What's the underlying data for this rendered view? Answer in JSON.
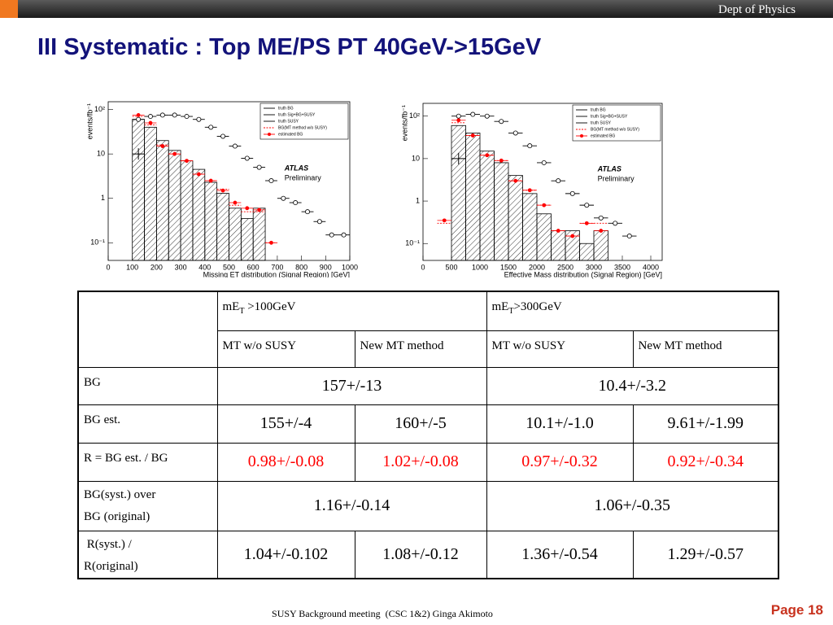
{
  "header": {
    "org": "Dept of Physics"
  },
  "title": "III Systematic : Top ME/PS PT 40GeV->15GeV",
  "chart_data": [
    {
      "type": "histogram",
      "xlabel": "Missing  ET distribution (Signal Region) [GeV]",
      "ylabel": "events/fb⁻¹",
      "annotations": [
        "ATLAS",
        "Preliminary"
      ],
      "log_y": true,
      "bins": [
        0,
        50,
        100,
        150,
        200,
        250,
        300,
        350,
        400,
        450,
        500,
        550,
        600,
        650,
        700,
        750,
        800,
        850,
        900,
        950,
        1000
      ],
      "xlim": [
        0,
        1000
      ],
      "ylim": [
        0.04,
        150
      ],
      "xticks": [
        0,
        100,
        200,
        300,
        400,
        500,
        600,
        700,
        800,
        900,
        1000
      ],
      "yticks": [
        {
          "value": 0.1,
          "label": "10⁻¹"
        },
        1,
        10,
        {
          "value": 100,
          "label": "10²"
        }
      ],
      "series": [
        {
          "name": "truth BG",
          "color": "#000000",
          "style": "hatched",
          "values": [
            null,
            null,
            60,
            40,
            20,
            12,
            7,
            4.5,
            2.3,
            1.3,
            0.6,
            0.35,
            0.6,
            null,
            null,
            null,
            null,
            null,
            null,
            null
          ]
        },
        {
          "name": "truth Sig+BG+SUSY",
          "color": "#000000",
          "style": "open-circle",
          "values": [
            null,
            null,
            60,
            70,
            75,
            75,
            70,
            60,
            40,
            25,
            15,
            8,
            5,
            2.5,
            1,
            0.8,
            0.5,
            0.3,
            0.15,
            0.15
          ]
        },
        {
          "name": "truth SUSY",
          "color": "#000000",
          "style": "cross",
          "values": [
            null,
            null,
            10,
            null,
            null,
            null,
            null,
            null,
            null,
            null,
            null,
            null,
            null,
            null,
            null,
            null,
            null,
            null,
            null,
            null
          ]
        },
        {
          "name": "BG(MT method w/o SUSY)",
          "color": "#ff0000",
          "style": "dotted",
          "values": [
            null,
            null,
            70,
            45,
            16,
            10,
            7,
            3.5,
            2.5,
            1.6,
            0.7,
            0.5,
            0.5,
            0.1,
            null,
            null,
            null,
            null,
            null,
            null
          ]
        },
        {
          "name": "estimated BG",
          "color": "#ff0000",
          "style": "point",
          "values": [
            null,
            null,
            75,
            50,
            15,
            10,
            7,
            3.5,
            2.5,
            1.5,
            0.8,
            0.6,
            0.55,
            0.1,
            null,
            null,
            null,
            null,
            null,
            null
          ]
        }
      ]
    },
    {
      "type": "histogram",
      "xlabel": "Effective  Mass   distribution (Signal Region) [GeV]",
      "ylabel": "events/fb⁻¹",
      "annotations": [
        "ATLAS",
        "Preliminary"
      ],
      "log_y": true,
      "bins": [
        0,
        250,
        500,
        750,
        1000,
        1250,
        1500,
        1750,
        2000,
        2250,
        2500,
        2750,
        3000,
        3250,
        3500,
        3750,
        4000
      ],
      "xlim": [
        0,
        4200
      ],
      "ylim": [
        0.04,
        200
      ],
      "xticks": [
        0,
        500,
        1000,
        1500,
        2000,
        2500,
        3000,
        3500,
        4000
      ],
      "yticks": [
        {
          "value": 0.1,
          "label": "10⁻¹"
        },
        1,
        10,
        {
          "value": 100,
          "label": "10²"
        }
      ],
      "series": [
        {
          "name": "truth BG",
          "color": "#000000",
          "style": "hatched",
          "values": [
            null,
            null,
            60,
            40,
            15,
            8,
            4,
            1.5,
            0.5,
            0.2,
            0.2,
            0.1,
            0.2,
            null,
            null,
            null
          ]
        },
        {
          "name": "truth Sig+BG+SUSY",
          "color": "#000000",
          "style": "open-circle",
          "values": [
            null,
            null,
            100,
            110,
            100,
            75,
            40,
            20,
            8,
            3,
            1.5,
            0.8,
            0.4,
            0.3,
            0.15,
            null
          ]
        },
        {
          "name": "truth SUSY",
          "color": "#000000",
          "style": "cross",
          "values": [
            null,
            null,
            10,
            null,
            null,
            null,
            null,
            null,
            null,
            null,
            null,
            null,
            null,
            null,
            null,
            null
          ]
        },
        {
          "name": "BG(MT method w/o SUSY)",
          "color": "#ff0000",
          "style": "dotted",
          "values": [
            null,
            0.3,
            70,
            35,
            12,
            9,
            3,
            1.8,
            0.8,
            0.2,
            0.15,
            0.3,
            0.3,
            null,
            null,
            null
          ]
        },
        {
          "name": "estimated BG",
          "color": "#ff0000",
          "style": "point",
          "values": [
            null,
            0.35,
            80,
            35,
            12,
            9,
            3,
            1.8,
            0.8,
            0.2,
            0.15,
            0.3,
            0.2,
            null,
            null,
            null
          ]
        }
      ]
    }
  ],
  "table": {
    "groups": [
      {
        "text": "mE",
        "sub": "T",
        "suffix": " >100GeV"
      },
      {
        "text": "mE",
        "sub": "T",
        "suffix": ">300GeV"
      }
    ],
    "subheaders": [
      "MT w/o SUSY",
      "New MT method",
      "MT w/o SUSY",
      "New MT method"
    ],
    "rows": [
      {
        "label": [
          "BG"
        ],
        "cells": [
          "157+/-13",
          "10.4+/-3.2"
        ]
      },
      {
        "label": [
          "BG est."
        ],
        "cells": [
          "155+/-4",
          "160+/-5",
          "10.1+/-1.0",
          "9.61+/-1.99"
        ]
      },
      {
        "label": [
          "R = BG est. / BG"
        ],
        "color": "#ff0000",
        "cells": [
          "0.98+/-0.08",
          "1.02+/-0.08",
          "0.97+/-0.32",
          "0.92+/-0.34"
        ]
      },
      {
        "label": [
          "BG(syst.) over",
          "BG (original)"
        ],
        "cells": [
          "1.16+/-0.14",
          "1.06+/-0.35"
        ]
      },
      {
        "label": [
          " R(syst.) /",
          "R(original)"
        ],
        "cells": [
          "1.04+/-0.102",
          "1.08+/-0.12",
          "1.36+/-0.54",
          "1.29+/-0.57"
        ]
      }
    ]
  },
  "footer": {
    "text": "SUSY Background meeting  (CSC 1&2) Ginga Akimoto",
    "page": "Page 18"
  }
}
